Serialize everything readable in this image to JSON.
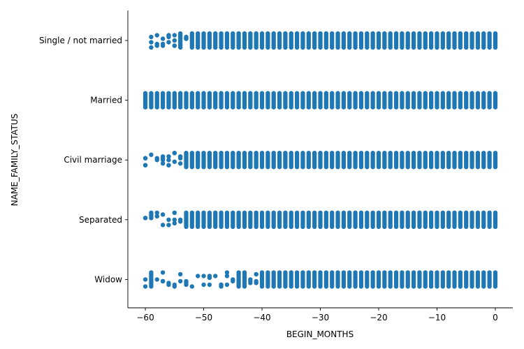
{
  "chart_data": {
    "type": "scatter",
    "subtype": "categorical strip plot (jittered)",
    "xlabel": "BEGIN_MONTHS",
    "ylabel": "NAME_FAMILY_STATUS",
    "xlim": [
      -63,
      3
    ],
    "x_ticks": [
      -60,
      -50,
      -40,
      -30,
      -20,
      -10,
      0
    ],
    "x_tick_labels": [
      "−60",
      "−50",
      "−40",
      "−30",
      "−20",
      "−10",
      "0"
    ],
    "categories": [
      "Single / not married",
      "Married",
      "Civil marriage",
      "Separated",
      "Widow"
    ],
    "x_values": "integers",
    "x_value_range": [
      -60,
      0
    ],
    "series": [
      {
        "category": "Single / not married",
        "x_min": -59,
        "x_max": 0,
        "sparse_x": [
          -59,
          -58,
          -57,
          -56,
          -55,
          -53
        ]
      },
      {
        "category": "Married",
        "x_min": -60,
        "x_max": 0,
        "sparse_x": []
      },
      {
        "category": "Civil marriage",
        "x_min": -60,
        "x_max": 0,
        "sparse_x": [
          -60,
          -59,
          -58,
          -57,
          -56,
          -55,
          -54
        ]
      },
      {
        "category": "Separated",
        "x_min": -60,
        "x_max": 0,
        "sparse_x": [
          -60,
          -59,
          -58,
          -57,
          -56,
          -55,
          -54
        ]
      },
      {
        "category": "Widow",
        "x_min": -60,
        "x_max": 0,
        "sparse_x": [
          -60,
          -58,
          -57,
          -56,
          -55,
          -54,
          -53,
          -52,
          -51,
          -50,
          -49,
          -48,
          -47,
          -46,
          -45,
          -42,
          -41
        ]
      }
    ],
    "marker_color": "#1f77b4",
    "grid": false,
    "legend": "none"
  }
}
